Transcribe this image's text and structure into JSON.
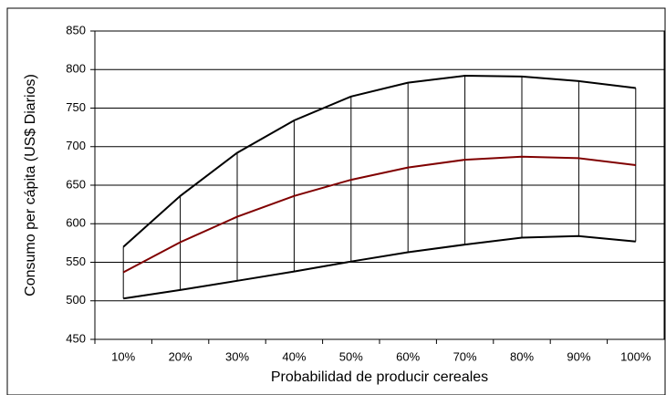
{
  "chart_data": {
    "type": "line",
    "x_label": "Probabilidad de producir cereales",
    "y_label": "Consumo per cápita (US$ Diarios)",
    "categories": [
      "10%",
      "20%",
      "30%",
      "40%",
      "50%",
      "60%",
      "70%",
      "80%",
      "90%",
      "100%"
    ],
    "series": [
      {
        "color": "#000000",
        "values": [
          570,
          636,
          692,
          734,
          765,
          783,
          792,
          791,
          785,
          776
        ]
      },
      {
        "color": "#800000",
        "values": [
          537,
          576,
          609,
          636,
          657,
          673,
          683,
          687,
          685,
          676
        ]
      },
      {
        "color": "#000000",
        "values": [
          503,
          514,
          526,
          538,
          551,
          563,
          573,
          582,
          584,
          577
        ]
      }
    ],
    "hilo_lines": true,
    "ylim": [
      450,
      850
    ],
    "yticks": [
      450,
      500,
      550,
      600,
      650,
      700,
      750,
      800,
      850
    ],
    "grid": true
  }
}
